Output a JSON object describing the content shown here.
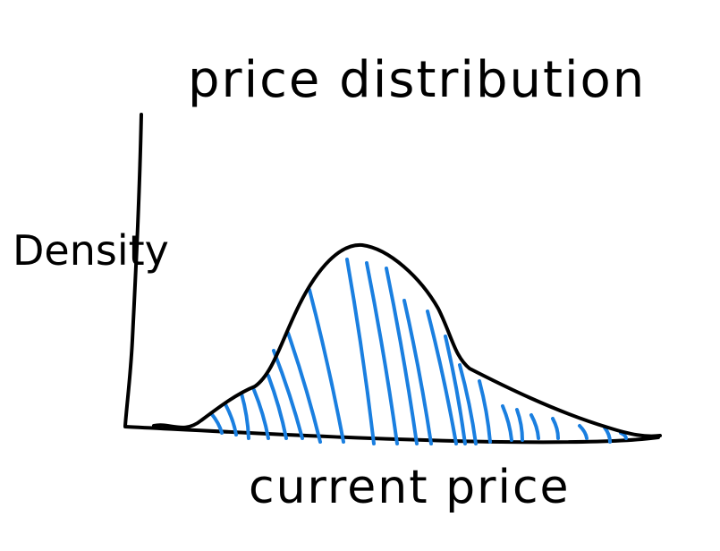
{
  "diagram": {
    "title": "price distribution",
    "y_axis_label": "Density",
    "x_axis_label": "current price",
    "shape": "right-skewed bell curve",
    "shaded_area": true,
    "colors": {
      "ink": "#000000",
      "hatch": "#1a7fe0",
      "background": "#ffffff"
    }
  }
}
